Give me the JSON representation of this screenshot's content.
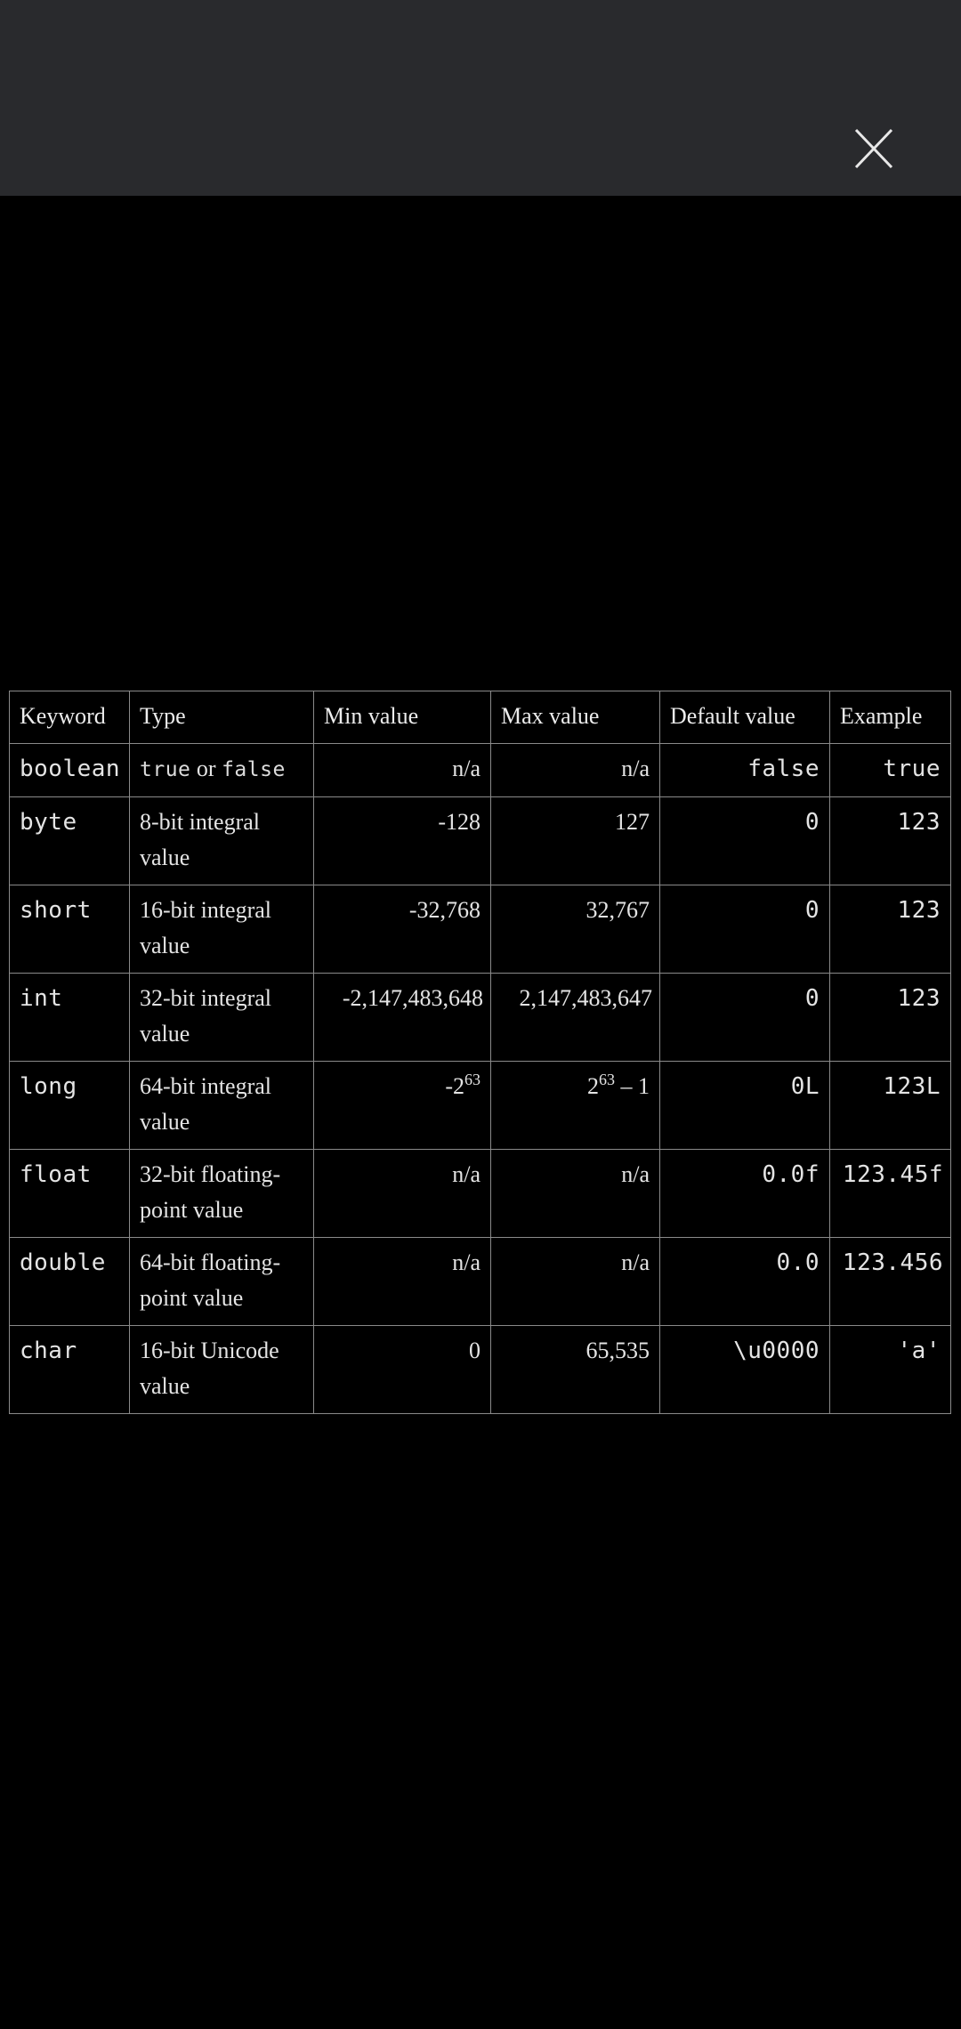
{
  "close_label": "Close",
  "table": {
    "headers": [
      "Keyword",
      "Type",
      "Min value",
      "Max value",
      "Default value",
      "Example"
    ],
    "rows": [
      {
        "keyword": "boolean",
        "type_mono_1": "true",
        "type_or": " or ",
        "type_mono_2": "false",
        "min": "n/a",
        "max": "n/a",
        "default": "false",
        "example": "true"
      },
      {
        "keyword": "byte",
        "type": "8-bit integral value",
        "min": "-128",
        "max": "127",
        "default": "0",
        "example": "123"
      },
      {
        "keyword": "short",
        "type": "16-bit integral value",
        "min": "-32,768",
        "max": "32,767",
        "default": "0",
        "example": "123"
      },
      {
        "keyword": "int",
        "type": "32-bit integral value",
        "min": "-2,147,483,648",
        "max": "2,147,483,647",
        "default": "0",
        "example": "123"
      },
      {
        "keyword": "long",
        "type": "64-bit integral value",
        "min_base": "-2",
        "min_exp": "63",
        "max_base": "2",
        "max_exp": "63",
        "max_suffix": " – 1",
        "default": "0L",
        "example": "123L"
      },
      {
        "keyword": "float",
        "type": "32-bit floating-point value",
        "min": "n/a",
        "max": "n/a",
        "default": "0.0f",
        "example": "123.45f"
      },
      {
        "keyword": "double",
        "type": "64-bit floating-point value",
        "min": "n/a",
        "max": "n/a",
        "default": "0.0",
        "example": "123.456"
      },
      {
        "keyword": "char",
        "type": "16-bit Unicode value",
        "min": "0",
        "max": "65,535",
        "default": "\\u0000",
        "example": "'a'"
      }
    ]
  }
}
